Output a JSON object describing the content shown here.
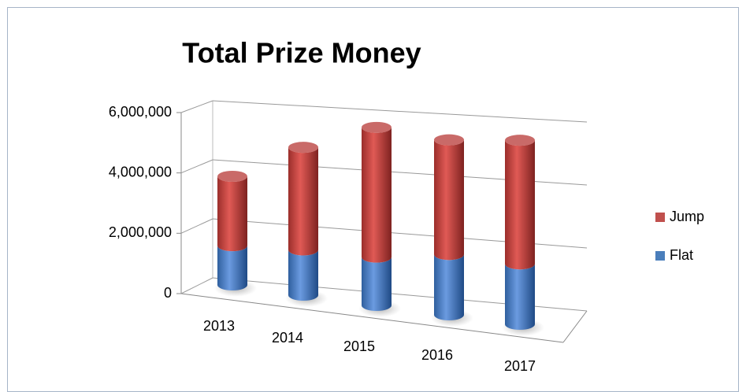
{
  "chart_data": {
    "type": "bar3d_stacked",
    "title": "Total Prize Money",
    "categories": [
      "2013",
      "2014",
      "2015",
      "2016",
      "2017"
    ],
    "series": [
      {
        "name": "Flat",
        "color": "#4a7ebb",
        "values": [
          1300000,
          1500000,
          1600000,
          2000000,
          2000000
        ]
      },
      {
        "name": "Jump",
        "color": "#c0504d",
        "values": [
          2300000,
          3400000,
          4300000,
          3800000,
          4100000
        ]
      }
    ],
    "ylim": [
      0,
      6000000
    ],
    "yticks": [
      0,
      {
        "value": 2000000,
        "label": "2,000,000"
      },
      {
        "value": 4000000,
        "label": "4,000,000"
      },
      {
        "value": 6000000,
        "label": "6,000,000"
      }
    ],
    "grid": true,
    "legend": "right"
  }
}
